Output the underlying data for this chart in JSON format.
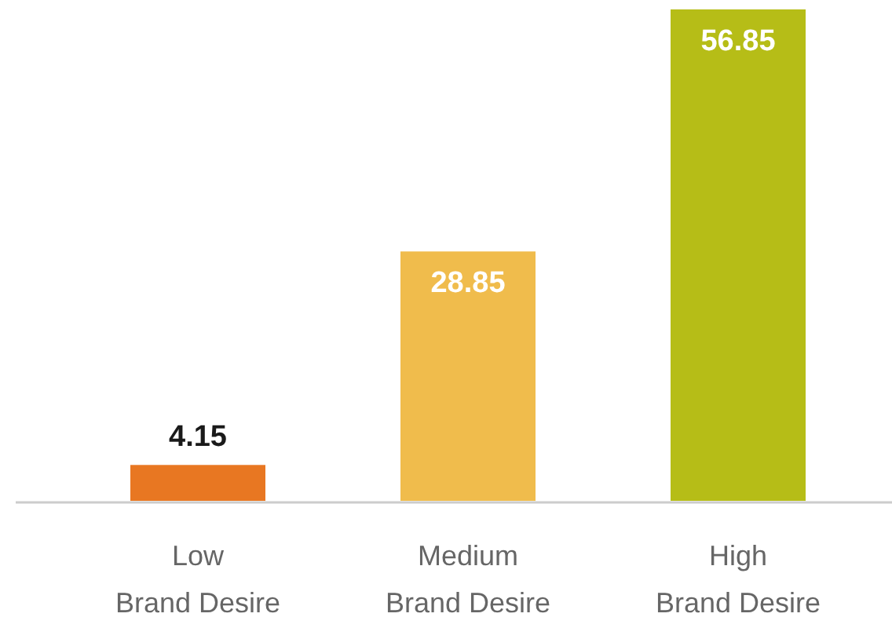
{
  "chart_data": {
    "type": "bar",
    "categories": [
      "Low\nBrand Desire",
      "Medium\nBrand Desire",
      "High\nBrand Desire"
    ],
    "values": [
      4.15,
      28.85,
      56.85
    ],
    "colors": [
      "#e87722",
      "#f0bc4c",
      "#b6bd17"
    ],
    "data_labels": true
  }
}
